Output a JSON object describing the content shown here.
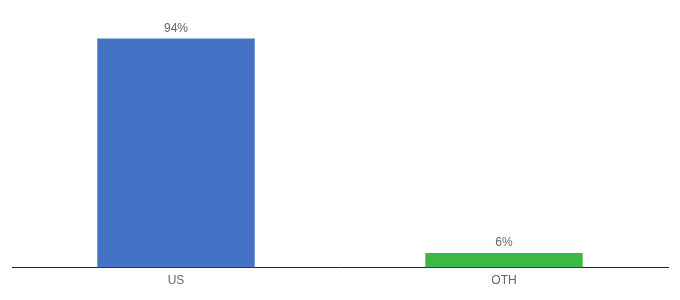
{
  "chart_data": {
    "type": "bar",
    "categories": [
      "US",
      "OTH"
    ],
    "values": [
      94,
      6
    ],
    "value_labels": [
      "94%",
      "6%"
    ],
    "data_labels": true,
    "colors": [
      "#4472c4",
      "#3cb943"
    ],
    "ylim": [
      0,
      100
    ],
    "grid": false,
    "tick_labels": "x"
  }
}
